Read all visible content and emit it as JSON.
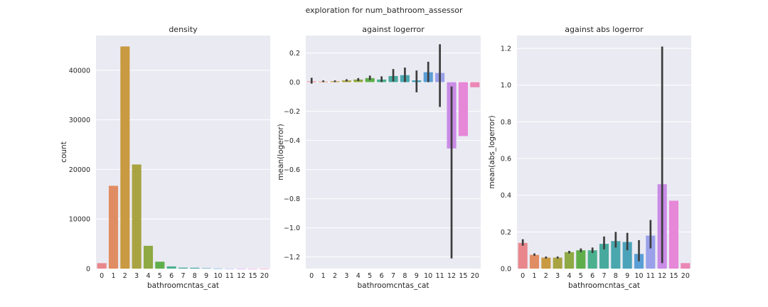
{
  "figure": {
    "suptitle": "exploration for num_bathroom_assessor"
  },
  "chart_data": [
    {
      "type": "bar",
      "title": "density",
      "xlabel": "bathroomcntas_cat",
      "ylabel": "count",
      "categories": [
        "0",
        "1",
        "2",
        "3",
        "4",
        "5",
        "6",
        "7",
        "8",
        "9",
        "10",
        "11",
        "12",
        "15",
        "20"
      ],
      "values": [
        1100,
        16700,
        44800,
        21000,
        4600,
        1400,
        450,
        200,
        180,
        80,
        30,
        20,
        5,
        3,
        2
      ],
      "ylim": [
        0,
        47000
      ],
      "yticks": [
        0,
        10000,
        20000,
        30000,
        40000
      ],
      "grid": true
    },
    {
      "type": "bar",
      "title": "against logerror",
      "xlabel": "bathroomcntas_cat",
      "ylabel": "mean(logerror)",
      "categories": [
        "0",
        "1",
        "2",
        "3",
        "4",
        "5",
        "6",
        "7",
        "8",
        "9",
        "10",
        "11",
        "12",
        "15",
        "20"
      ],
      "values": [
        0.005,
        0.004,
        0.006,
        0.012,
        0.018,
        0.028,
        0.018,
        0.042,
        0.048,
        0.012,
        0.068,
        0.063,
        -0.455,
        -0.37,
        -0.035
      ],
      "err_low": [
        -0.01,
        0.0,
        0.0,
        0.005,
        0.008,
        0.015,
        0.0,
        0.005,
        0.0,
        -0.07,
        0.0,
        -0.17,
        -1.21,
        null,
        null
      ],
      "err_high": [
        0.03,
        0.012,
        0.012,
        0.02,
        0.028,
        0.045,
        0.04,
        0.09,
        0.1,
        0.08,
        0.14,
        0.26,
        -0.03,
        null,
        null
      ],
      "ylim": [
        -1.28,
        0.32
      ],
      "yticks": [
        -1.2,
        -1.0,
        -0.8,
        -0.6,
        -0.4,
        -0.2,
        0.0,
        0.2
      ],
      "yticklabels": [
        "−1.2",
        "−1.0",
        "−0.8",
        "−0.6",
        "−0.4",
        "−0.2",
        "0.0",
        "0.2"
      ],
      "grid": true
    },
    {
      "type": "bar",
      "title": "against abs logerror",
      "xlabel": "bathroomcntas_cat",
      "ylabel": "mean(abs_logerror)",
      "categories": [
        "0",
        "1",
        "2",
        "3",
        "4",
        "5",
        "6",
        "7",
        "8",
        "9",
        "10",
        "11",
        "12",
        "15",
        "20"
      ],
      "values": [
        0.14,
        0.075,
        0.06,
        0.06,
        0.09,
        0.1,
        0.1,
        0.135,
        0.15,
        0.145,
        0.08,
        0.18,
        0.46,
        0.37,
        0.03
      ],
      "err_low": [
        0.125,
        0.07,
        0.055,
        0.055,
        0.083,
        0.09,
        0.085,
        0.105,
        0.115,
        0.1,
        0.04,
        0.11,
        0.03,
        null,
        null
      ],
      "err_high": [
        0.16,
        0.083,
        0.066,
        0.066,
        0.097,
        0.11,
        0.115,
        0.175,
        0.2,
        0.195,
        0.155,
        0.265,
        1.21,
        null,
        null
      ],
      "ylim": [
        0,
        1.27
      ],
      "yticks": [
        0.0,
        0.2,
        0.4,
        0.6,
        0.8,
        1.0,
        1.2
      ],
      "yticklabels": [
        "0.0",
        "0.2",
        "0.4",
        "0.6",
        "0.8",
        "1.0",
        "1.2"
      ],
      "grid": true
    }
  ],
  "palette": [
    "#e9878c",
    "#e18d63",
    "#c99a41",
    "#a9a342",
    "#8fa944",
    "#5fae4b",
    "#4bb08e",
    "#48aa9e",
    "#49a7ad",
    "#4aa3b9",
    "#5a9ed6",
    "#9aa1ea",
    "#c98be6",
    "#e687d8",
    "#eb87b6"
  ]
}
